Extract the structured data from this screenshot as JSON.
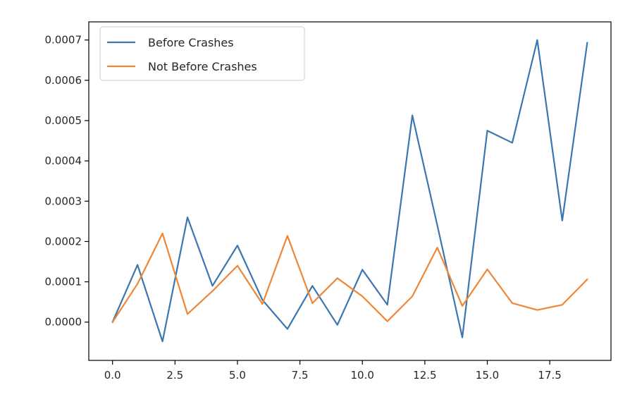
{
  "chart_data": {
    "type": "line",
    "title": "",
    "xlabel": "",
    "ylabel": "",
    "xlim": [
      -0.95,
      19.95
    ],
    "ylim": [
      -9.5e-05,
      0.000745
    ],
    "xticks": [
      0.0,
      2.5,
      5.0,
      7.5,
      10.0,
      12.5,
      15.0,
      17.5
    ],
    "xtick_labels": [
      "0.0",
      "2.5",
      "5.0",
      "7.5",
      "10.0",
      "12.5",
      "15.0",
      "17.5"
    ],
    "yticks": [
      0.0,
      0.0001,
      0.0002,
      0.0003,
      0.0004,
      0.0005,
      0.0006,
      0.0007
    ],
    "ytick_labels": [
      "0.0000",
      "0.0001",
      "0.0002",
      "0.0003",
      "0.0004",
      "0.0005",
      "0.0006",
      "0.0007"
    ],
    "grid": false,
    "legend_position": "top-left",
    "x": [
      0,
      1,
      2,
      3,
      4,
      5,
      6,
      7,
      8,
      9,
      10,
      11,
      12,
      13,
      14,
      15,
      16,
      17,
      18,
      19
    ],
    "series": [
      {
        "name": "Before Crashes",
        "color": "#3a76af",
        "values": [
          0.0,
          0.000142,
          -4.8e-05,
          0.00026,
          9e-05,
          0.00019,
          5.5e-05,
          -1.7e-05,
          9e-05,
          -7e-06,
          0.00013,
          4.3e-05,
          0.000513,
          0.00024,
          -3.8e-05,
          0.000475,
          0.000445,
          0.0007,
          0.000252,
          0.000693
        ]
      },
      {
        "name": "Not Before Crashes",
        "color": "#ef8636",
        "values": [
          0.0,
          9.5e-05,
          0.00022,
          2e-05,
          7.7e-05,
          0.00014,
          4.5e-05,
          0.000214,
          4.7e-05,
          0.000109,
          6.4e-05,
          2e-06,
          6.4e-05,
          0.000185,
          4e-05,
          0.000131,
          4.7e-05,
          3e-05,
          4.3e-05,
          0.000106
        ]
      }
    ]
  }
}
